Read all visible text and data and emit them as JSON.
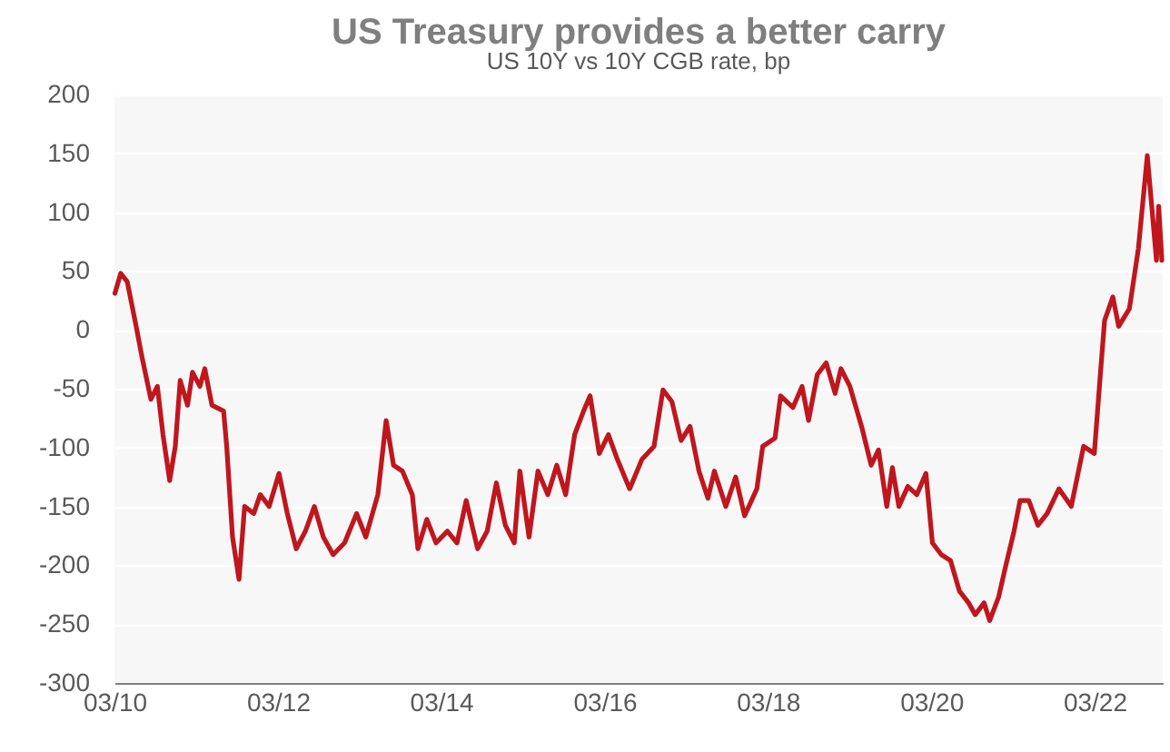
{
  "chart_data": {
    "type": "line",
    "title": "US Treasury provides a better carry",
    "subtitle": "US 10Y vs 10Y CGB rate, bp",
    "x": [
      "2010-03-03",
      "2010-03-29",
      "2010-04-27",
      "2010-06-06",
      "2010-07-02",
      "2010-08-11",
      "2010-09-09",
      "2010-10-04",
      "2010-11-03",
      "2010-11-28",
      "2010-12-20",
      "2011-01-22",
      "2011-02-13",
      "2011-03-18",
      "2011-04-09",
      "2011-05-11",
      "2011-07-02",
      "2011-07-16",
      "2011-08-11",
      "2011-09-09",
      "2011-10-04",
      "2011-11-14",
      "2011-12-13",
      "2012-01-22",
      "2012-03-06",
      "2012-04-12",
      "2012-05-22",
      "2012-07-02",
      "2012-08-11",
      "2012-09-20",
      "2012-11-03",
      "2012-12-24",
      "2013-02-16",
      "2013-03-29",
      "2013-05-22",
      "2013-06-28",
      "2013-07-31",
      "2013-09-09",
      "2013-10-23",
      "2013-11-17",
      "2013-12-27",
      "2014-02-06",
      "2014-03-29",
      "2014-05-11",
      "2014-06-21",
      "2014-08-11",
      "2014-09-23",
      "2014-11-03",
      "2014-12-13",
      "2015-01-22",
      "2015-02-16",
      "2015-03-29",
      "2015-05-08",
      "2015-06-21",
      "2015-07-31",
      "2015-09-09",
      "2015-10-19",
      "2015-11-28",
      "2015-12-27",
      "2016-02-06",
      "2016-03-18",
      "2016-04-27",
      "2016-06-21",
      "2016-08-15",
      "2016-10-08",
      "2016-11-17",
      "2016-12-27",
      "2017-02-06",
      "2017-03-18",
      "2017-04-27",
      "2017-06-06",
      "2017-07-05",
      "2017-08-25",
      "2017-10-08",
      "2017-11-17",
      "2018-01-11",
      "2018-02-06",
      "2018-04-02",
      "2018-04-27",
      "2018-06-21",
      "2018-08-01",
      "2018-08-30",
      "2018-10-08",
      "2018-11-17",
      "2018-12-27",
      "2019-01-22",
      "2019-03-03",
      "2019-04-27",
      "2019-06-06",
      "2019-07-09",
      "2019-08-15",
      "2019-09-09",
      "2019-10-08",
      "2019-11-17",
      "2019-12-27",
      "2020-02-06",
      "2020-03-06",
      "2020-04-15",
      "2020-05-26",
      "2020-07-05",
      "2020-08-15",
      "2020-09-13",
      "2020-10-23",
      "2020-11-17",
      "2020-12-27",
      "2021-01-26",
      "2021-03-06",
      "2021-04-02",
      "2021-05-11",
      "2021-06-21",
      "2021-08-01",
      "2021-09-23",
      "2021-11-17",
      "2022-01-11",
      "2022-02-28",
      "2022-03-29",
      "2022-04-15",
      "2022-05-22",
      "2022-06-17",
      "2022-08-04",
      "2022-09-13",
      "2022-10-23",
      "2022-12-03",
      "2022-12-13",
      "2022-12-27"
    ],
    "series": [
      {
        "color": "#c0161e",
        "values": [
          31,
          48,
          41,
          3,
          -23,
          -59,
          -48,
          -89,
          -128,
          -99,
          -43,
          -64,
          -36,
          -48,
          -33,
          -64,
          -69,
          -99,
          -176,
          -212,
          -150,
          -156,
          -140,
          -150,
          -122,
          -156,
          -186,
          -171,
          -150,
          -176,
          -191,
          -181,
          -156,
          -176,
          -140,
          -77,
          -115,
          -120,
          -140,
          -186,
          -161,
          -181,
          -171,
          -181,
          -145,
          -186,
          -171,
          -130,
          -166,
          -181,
          -120,
          -176,
          -120,
          -140,
          -115,
          -140,
          -89,
          -69,
          -56,
          -105,
          -89,
          -110,
          -135,
          -110,
          -99,
          -51,
          -61,
          -94,
          -82,
          -120,
          -143,
          -120,
          -150,
          -125,
          -158,
          -135,
          -99,
          -92,
          -56,
          -66,
          -48,
          -77,
          -38,
          -28,
          -54,
          -33,
          -48,
          -84,
          -115,
          -102,
          -150,
          -117,
          -150,
          -133,
          -140,
          -122,
          -181,
          -191,
          -196,
          -222,
          -232,
          -242,
          -232,
          -247,
          -227,
          -202,
          -171,
          -145,
          -145,
          -166,
          -156,
          -135,
          -150,
          -99,
          -105,
          -33,
          8,
          28,
          3,
          18,
          69,
          148,
          59,
          105,
          59
        ]
      }
    ],
    "xlim": [
      "2010-03-01",
      "2022-12-31"
    ],
    "xticks": [
      {
        "value": "2010-03-01",
        "label": "03/10"
      },
      {
        "value": "2012-03-01",
        "label": "03/12"
      },
      {
        "value": "2014-03-01",
        "label": "03/14"
      },
      {
        "value": "2016-03-01",
        "label": "03/16"
      },
      {
        "value": "2018-03-01",
        "label": "03/18"
      },
      {
        "value": "2020-03-01",
        "label": "03/20"
      },
      {
        "value": "2022-03-01",
        "label": "03/22"
      }
    ],
    "ylim": [
      -300,
      200
    ],
    "yticks": [
      -300,
      -250,
      -200,
      -150,
      -100,
      -50,
      0,
      50,
      100,
      150,
      200
    ],
    "grid": "y",
    "line_style": "solid",
    "marker": "none"
  }
}
